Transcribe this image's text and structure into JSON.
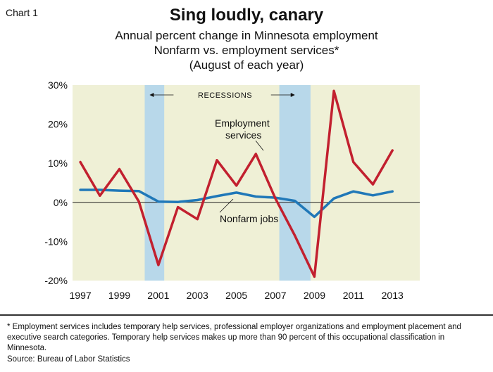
{
  "chart_label": "Chart 1",
  "title": "Sing loudly, canary",
  "subtitle_lines": [
    "Annual percent change in Minnesota employment",
    "Nonfarm vs. employment services*",
    "(August of each year)"
  ],
  "footnote": "* Employment services includes temporary help services, professional employer organizations and employment placement and executive search categories. Temporary help services makes up more than 90 percent of this occupational classification in Minnesota.",
  "source": "Source: Bureau of Labor Statistics",
  "colors": {
    "plot_background": "#eff0d6",
    "recession_band": "#b8d8ea",
    "employment_services": "#c2202f",
    "nonfarm": "#2078b8",
    "axis": "#222222"
  },
  "chart_data": {
    "type": "line",
    "title": "Sing loudly, canary",
    "x": [
      1997,
      1998,
      1999,
      2000,
      2001,
      2002,
      2003,
      2004,
      2005,
      2006,
      2007,
      2008,
      2009,
      2010,
      2011,
      2012,
      2013
    ],
    "xlim": [
      1996.6,
      2014.4
    ],
    "x_tick_labels": [
      "1997",
      "1999",
      "2001",
      "2003",
      "2005",
      "2007",
      "2009",
      "2011",
      "2013"
    ],
    "x_tick_values": [
      1997,
      1999,
      2001,
      2003,
      2005,
      2007,
      2009,
      2011,
      2013
    ],
    "ylim": [
      -20,
      30
    ],
    "y_tick_values": [
      -20,
      -10,
      0,
      10,
      20,
      30
    ],
    "y_tick_labels": [
      "-20%",
      "-10%",
      "0%",
      "10%",
      "20%",
      "30%"
    ],
    "grid": false,
    "recessions": {
      "label": "RECESSIONS",
      "periods": [
        [
          2000.3,
          2001.3
        ],
        [
          2007.2,
          2008.8
        ]
      ]
    },
    "series": [
      {
        "name": "Employment services",
        "label": "Employment services",
        "color": "#c2202f",
        "values": [
          10.3,
          1.7,
          8.5,
          0.2,
          -16.0,
          -1.2,
          -4.3,
          10.8,
          4.3,
          12.4,
          1.0,
          -8.5,
          -19.0,
          28.5,
          10.3,
          4.6,
          13.3
        ]
      },
      {
        "name": "Nonfarm jobs",
        "label": "Nonfarm jobs",
        "color": "#2078b8",
        "values": [
          3.2,
          3.2,
          3.0,
          2.9,
          0.2,
          0.1,
          0.6,
          1.6,
          2.5,
          1.5,
          1.2,
          0.4,
          -3.7,
          1.0,
          2.8,
          1.8,
          2.8
        ]
      }
    ]
  }
}
